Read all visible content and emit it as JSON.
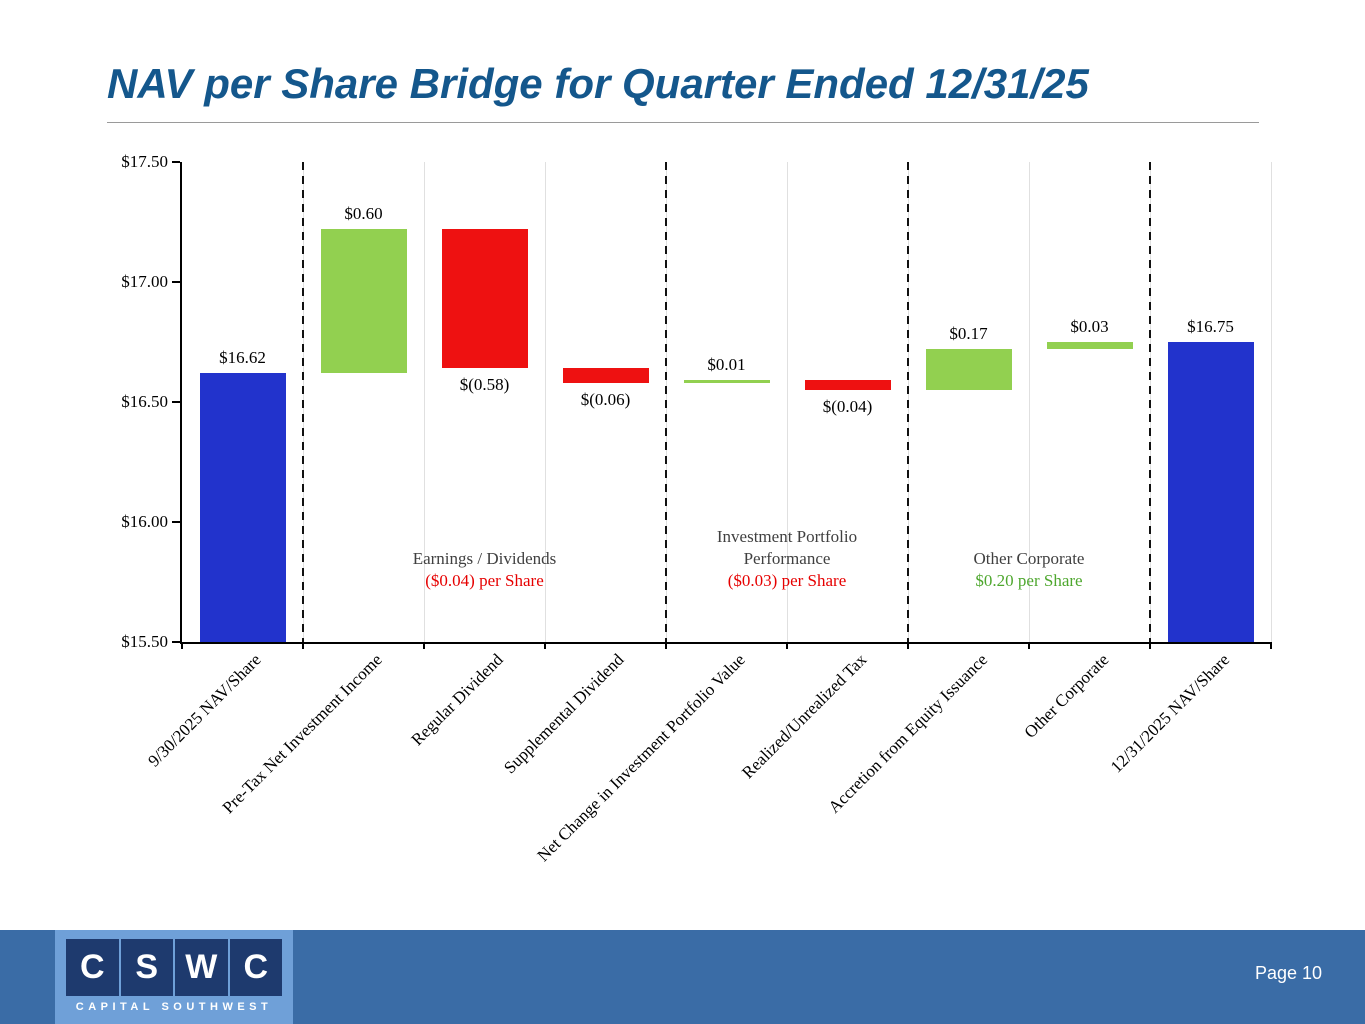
{
  "chart_data": {
    "type": "waterfall",
    "title": "NAV per Share Bridge for Quarter Ended 12/31/25",
    "xlabel": "",
    "ylabel": "",
    "ylim": [
      15.5,
      17.5
    ],
    "grid": "none",
    "legend": "none",
    "yticks": [
      {
        "value": 17.5,
        "label": "$17.50"
      },
      {
        "value": 17.0,
        "label": "$17.00"
      },
      {
        "value": 16.5,
        "label": "$16.50"
      },
      {
        "value": 16.0,
        "label": "$16.00"
      },
      {
        "value": 15.5,
        "label": "$15.50"
      }
    ],
    "colors": {
      "total": "#2233cc",
      "increase": "#92d050",
      "decrease": "#ee1111"
    },
    "steps": [
      {
        "category": "9/30/2025 NAV/Share",
        "label": "$16.62",
        "kind": "total",
        "value": 16.62,
        "label_pos": "above"
      },
      {
        "category": "Pre-Tax Net Investment Income",
        "label": "$0.60",
        "kind": "increase",
        "value": 0.6,
        "label_pos": "above"
      },
      {
        "category": "Regular Dividend",
        "label": "$(0.58)",
        "kind": "decrease",
        "value": -0.58,
        "label_pos": "below"
      },
      {
        "category": "Supplemental Dividend",
        "label": "$(0.06)",
        "kind": "decrease",
        "value": -0.06,
        "label_pos": "below"
      },
      {
        "category": "Net Change in Investment Portfolio Value",
        "label": "$0.01",
        "kind": "increase",
        "value": 0.01,
        "label_pos": "above"
      },
      {
        "category": "Realized/Unrealized Tax",
        "label": "$(0.04)",
        "kind": "decrease",
        "value": -0.04,
        "label_pos": "below"
      },
      {
        "category": "Accretion from Equity Issuance",
        "label": "$0.17",
        "kind": "increase",
        "value": 0.17,
        "label_pos": "above"
      },
      {
        "category": "Other Corporate",
        "label": "$0.03",
        "kind": "increase",
        "value": 0.03,
        "label_pos": "above"
      },
      {
        "category": "12/31/2025 NAV/Share",
        "label": "$16.75",
        "kind": "total",
        "value": 16.75,
        "label_pos": "above"
      }
    ],
    "separators_after": [
      0,
      3,
      5,
      7
    ],
    "groups": [
      {
        "lines": [
          "Earnings / Dividends"
        ],
        "amount": "($0.04) per Share",
        "amount_color": "#e60000",
        "region": [
          1,
          4
        ]
      },
      {
        "lines": [
          "Investment Portfolio",
          "Performance"
        ],
        "amount": "($0.03) per Share",
        "amount_color": "#e60000",
        "region": [
          4,
          6
        ]
      },
      {
        "lines": [
          "Other Corporate"
        ],
        "amount": "$0.20 per Share",
        "amount_color": "#4ea72e",
        "region": [
          6,
          8
        ]
      }
    ]
  },
  "brand": {
    "title_color": "#14578c",
    "footer_band_color": "#3a6ca6",
    "logo_light_blue": "#6fa0d8",
    "logo_dark_blue": "#1e3a6e"
  },
  "footer": {
    "logo_letters": [
      "C",
      "S",
      "W",
      "C"
    ],
    "logo_subtext": "CAPITAL SOUTHWEST",
    "page_label": "Page 10"
  }
}
